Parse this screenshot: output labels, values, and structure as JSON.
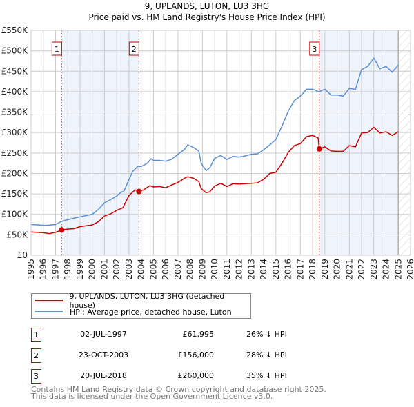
{
  "chart_data": {
    "type": "line",
    "title": "9, UPLANDS, LUTON, LU3 3HG",
    "subtitle": "Price paid vs. HM Land Registry's House Price Index (HPI)",
    "xlim": [
      1995,
      2026
    ],
    "ylim": [
      0,
      550000
    ],
    "x_ticks": [
      "1995",
      "1996",
      "1997",
      "1998",
      "1999",
      "2000",
      "2001",
      "2002",
      "2003",
      "2004",
      "2005",
      "2006",
      "2007",
      "2008",
      "2009",
      "2010",
      "2011",
      "2012",
      "2013",
      "2014",
      "2015",
      "2016",
      "2017",
      "2018",
      "2019",
      "2020",
      "2021",
      "2022",
      "2023",
      "2024",
      "2025",
      "2026"
    ],
    "y_ticks": [
      {
        "v": 0,
        "label": "£0"
      },
      {
        "v": 50000,
        "label": "£50K"
      },
      {
        "v": 100000,
        "label": "£100K"
      },
      {
        "v": 150000,
        "label": "£150K"
      },
      {
        "v": 200000,
        "label": "£200K"
      },
      {
        "v": 250000,
        "label": "£250K"
      },
      {
        "v": 300000,
        "label": "£300K"
      },
      {
        "v": 350000,
        "label": "£350K"
      },
      {
        "v": 400000,
        "label": "£400K"
      },
      {
        "v": 450000,
        "label": "£450K"
      },
      {
        "v": 500000,
        "label": "£500K"
      },
      {
        "v": 550000,
        "label": "£550K"
      }
    ],
    "grid": true,
    "shaded_ranges": [
      [
        1997.5,
        2003.81
      ],
      [
        2018.55,
        2025.0
      ]
    ],
    "future_hatch_from": 2025.05,
    "series": [
      {
        "name": "9, UPLANDS, LUTON, LU3 3HG (detached house)",
        "color": "#cc0000",
        "x": [
          1995,
          1996,
          1996.5,
          1997,
          1997.5,
          1998,
          1998.5,
          1999,
          2000,
          2000.5,
          2001,
          2001.5,
          2002,
          2002.5,
          2003,
          2003.5,
          2003.81,
          2004.2,
          2004.7,
          2005,
          2005.5,
          2006,
          2006.5,
          2007,
          2007.5,
          2007.8,
          2008.3,
          2008.7,
          2008.9,
          2009.3,
          2009.6,
          2010,
          2010.5,
          2011,
          2011.5,
          2012,
          2012.5,
          2013,
          2013.5,
          2014,
          2014.5,
          2015,
          2015.5,
          2016,
          2016.5,
          2017,
          2017.5,
          2018,
          2018.45,
          2018.55,
          2019,
          2019.5,
          2020,
          2020.5,
          2021,
          2021.5,
          2022,
          2022.5,
          2023,
          2023.5,
          2024,
          2024.5,
          2025
        ],
        "y": [
          57000,
          55000,
          53000,
          56000,
          62000,
          64000,
          65000,
          70000,
          74000,
          82000,
          96000,
          101000,
          110000,
          116000,
          146000,
          160000,
          156000,
          160000,
          170000,
          167000,
          168000,
          165000,
          172000,
          178000,
          188000,
          192000,
          188000,
          180000,
          163000,
          153000,
          155000,
          169000,
          176000,
          168000,
          175000,
          174000,
          175000,
          176000,
          177000,
          186000,
          200000,
          203000,
          225000,
          251000,
          268000,
          273000,
          290000,
          293000,
          287000,
          260000,
          265000,
          255000,
          254000,
          254000,
          268000,
          265000,
          299000,
          300000,
          313000,
          299000,
          302000,
          293000,
          302000
        ]
      },
      {
        "name": "HPI: Average price, detached house, Luton",
        "color": "#5b8fd4",
        "x": [
          1995,
          1996.2,
          1997,
          1997.5,
          1998,
          1999,
          2000,
          2000.5,
          2001,
          2001.5,
          2002,
          2002.3,
          2002.6,
          2003,
          2003.3,
          2003.7,
          2004,
          2004.5,
          2004.8,
          2005,
          2005.5,
          2006,
          2006.5,
          2007,
          2007.5,
          2007.8,
          2008.3,
          2008.7,
          2008.9,
          2009.3,
          2009.6,
          2010,
          2010.5,
          2011,
          2011.5,
          2012,
          2012.5,
          2013,
          2013.5,
          2014,
          2014.5,
          2015,
          2015.5,
          2016,
          2016.5,
          2017,
          2017.5,
          2018,
          2018.5,
          2019,
          2019.5,
          2020,
          2020.5,
          2021,
          2021.5,
          2022,
          2022.5,
          2023,
          2023.5,
          2024,
          2024.5,
          2025
        ],
        "y": [
          75000,
          73000,
          75000,
          83000,
          87000,
          94000,
          100000,
          112000,
          128000,
          136000,
          145000,
          153000,
          157000,
          185000,
          205000,
          217000,
          217000,
          225000,
          236000,
          232000,
          232000,
          230000,
          235000,
          247000,
          258000,
          270000,
          263000,
          255000,
          225000,
          207000,
          214000,
          237000,
          244000,
          234000,
          242000,
          240000,
          243000,
          247000,
          248000,
          258000,
          270000,
          283000,
          316000,
          352000,
          378000,
          389000,
          406000,
          406000,
          400000,
          406000,
          392000,
          392000,
          389000,
          408000,
          406000,
          454000,
          462000,
          482000,
          456000,
          462000,
          448000,
          465000
        ]
      }
    ],
    "sales": [
      {
        "n": "1",
        "x": 1997.5,
        "y": 61995
      },
      {
        "n": "2",
        "x": 2003.81,
        "y": 156000
      },
      {
        "n": "3",
        "x": 2018.55,
        "y": 260000
      }
    ]
  },
  "legend": [
    {
      "label": "9, UPLANDS, LUTON, LU3 3HG (detached house)",
      "color": "#cc0000"
    },
    {
      "label": "HPI: Average price, detached house, Luton",
      "color": "#5b8fd4"
    }
  ],
  "transactions": [
    {
      "n": "1",
      "date": "02-JUL-1997",
      "price": "£61,995",
      "hpi": "26% ↓ HPI"
    },
    {
      "n": "2",
      "date": "23-OCT-2003",
      "price": "£156,000",
      "hpi": "28% ↓ HPI"
    },
    {
      "n": "3",
      "date": "20-JUL-2018",
      "price": "£260,000",
      "hpi": "35% ↓ HPI"
    }
  ],
  "footer": {
    "line1": "Contains HM Land Registry data © Crown copyright and database right 2025.",
    "line2": "This data is licensed under the Open Government Licence v3.0."
  }
}
